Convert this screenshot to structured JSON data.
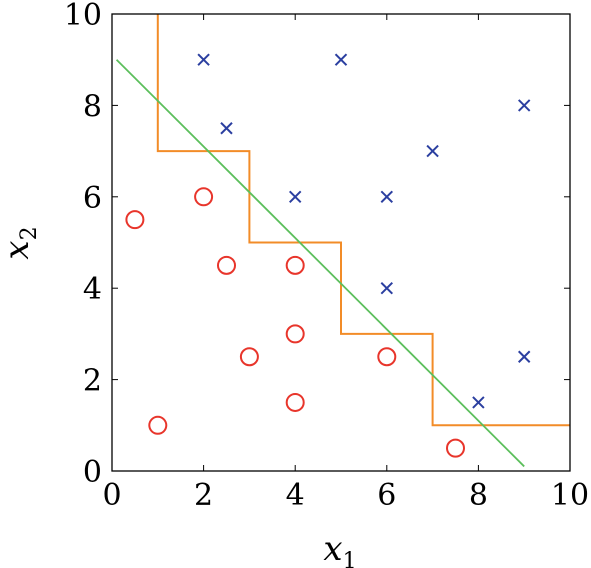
{
  "chart_data": {
    "type": "scatter",
    "title": "",
    "xlabel": "x",
    "xlabel_sub": "1",
    "ylabel": "x",
    "ylabel_sub": "2",
    "xlim": [
      0,
      10
    ],
    "ylim": [
      0,
      10
    ],
    "xticks": [
      0,
      2,
      4,
      6,
      8,
      10
    ],
    "yticks": [
      0,
      2,
      4,
      6,
      8,
      10
    ],
    "grid": false,
    "colors": {
      "circle": "#e8352b",
      "cross": "#2b3fa0",
      "staircase": "#f28c28",
      "line": "#5cbf5c"
    },
    "circles": [
      {
        "x": 0.5,
        "y": 5.5
      },
      {
        "x": 1.0,
        "y": 1.0
      },
      {
        "x": 2.0,
        "y": 6.0
      },
      {
        "x": 2.5,
        "y": 4.5
      },
      {
        "x": 3.0,
        "y": 2.5
      },
      {
        "x": 4.0,
        "y": 4.5
      },
      {
        "x": 4.0,
        "y": 3.0
      },
      {
        "x": 4.0,
        "y": 1.5
      },
      {
        "x": 6.0,
        "y": 2.5
      },
      {
        "x": 7.5,
        "y": 0.5
      }
    ],
    "crosses": [
      {
        "x": 2.0,
        "y": 9.0
      },
      {
        "x": 5.0,
        "y": 9.0
      },
      {
        "x": 2.5,
        "y": 7.5
      },
      {
        "x": 9.0,
        "y": 8.0
      },
      {
        "x": 7.0,
        "y": 7.0
      },
      {
        "x": 4.0,
        "y": 6.0
      },
      {
        "x": 6.0,
        "y": 6.0
      },
      {
        "x": 6.0,
        "y": 4.0
      },
      {
        "x": 9.0,
        "y": 2.5
      },
      {
        "x": 8.0,
        "y": 1.5
      }
    ],
    "staircase": [
      [
        1,
        10
      ],
      [
        1,
        7
      ],
      [
        3,
        7
      ],
      [
        3,
        5
      ],
      [
        5,
        5
      ],
      [
        5,
        3
      ],
      [
        7,
        3
      ],
      [
        7,
        1
      ],
      [
        10,
        1
      ]
    ],
    "line": [
      [
        0.1,
        9.0
      ],
      [
        9.0,
        0.1
      ]
    ]
  }
}
